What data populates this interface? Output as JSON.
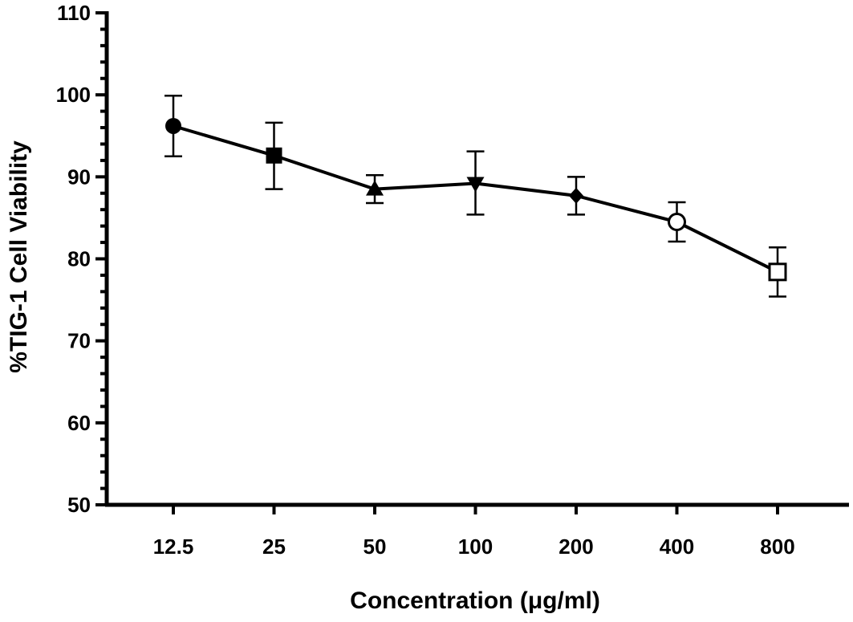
{
  "chart_data": {
    "type": "line",
    "title": "",
    "xlabel": "Concentration (μg/ml)",
    "ylabel": "%TIG-1 Cell Viability",
    "categories": [
      "12.5",
      "25",
      "50",
      "100",
      "200",
      "400",
      "800"
    ],
    "ylim": [
      50,
      110
    ],
    "yticks": [
      "50",
      "60",
      "70",
      "80",
      "90",
      "100",
      "110"
    ],
    "grid": false,
    "series": [
      {
        "values": [
          96.2,
          92.6,
          88.5,
          89.2,
          87.7,
          84.5,
          78.4
        ],
        "error_low": [
          92.5,
          88.5,
          86.8,
          85.4,
          85.4,
          82.1,
          75.4
        ],
        "error_high": [
          99.9,
          96.6,
          90.2,
          93.1,
          90.0,
          86.9,
          81.4
        ],
        "markers": [
          "filled-circle",
          "filled-square",
          "filled-triangle-up",
          "filled-triangle-down",
          "filled-diamond",
          "open-circle",
          "open-square"
        ],
        "color": "#000000"
      }
    ]
  }
}
